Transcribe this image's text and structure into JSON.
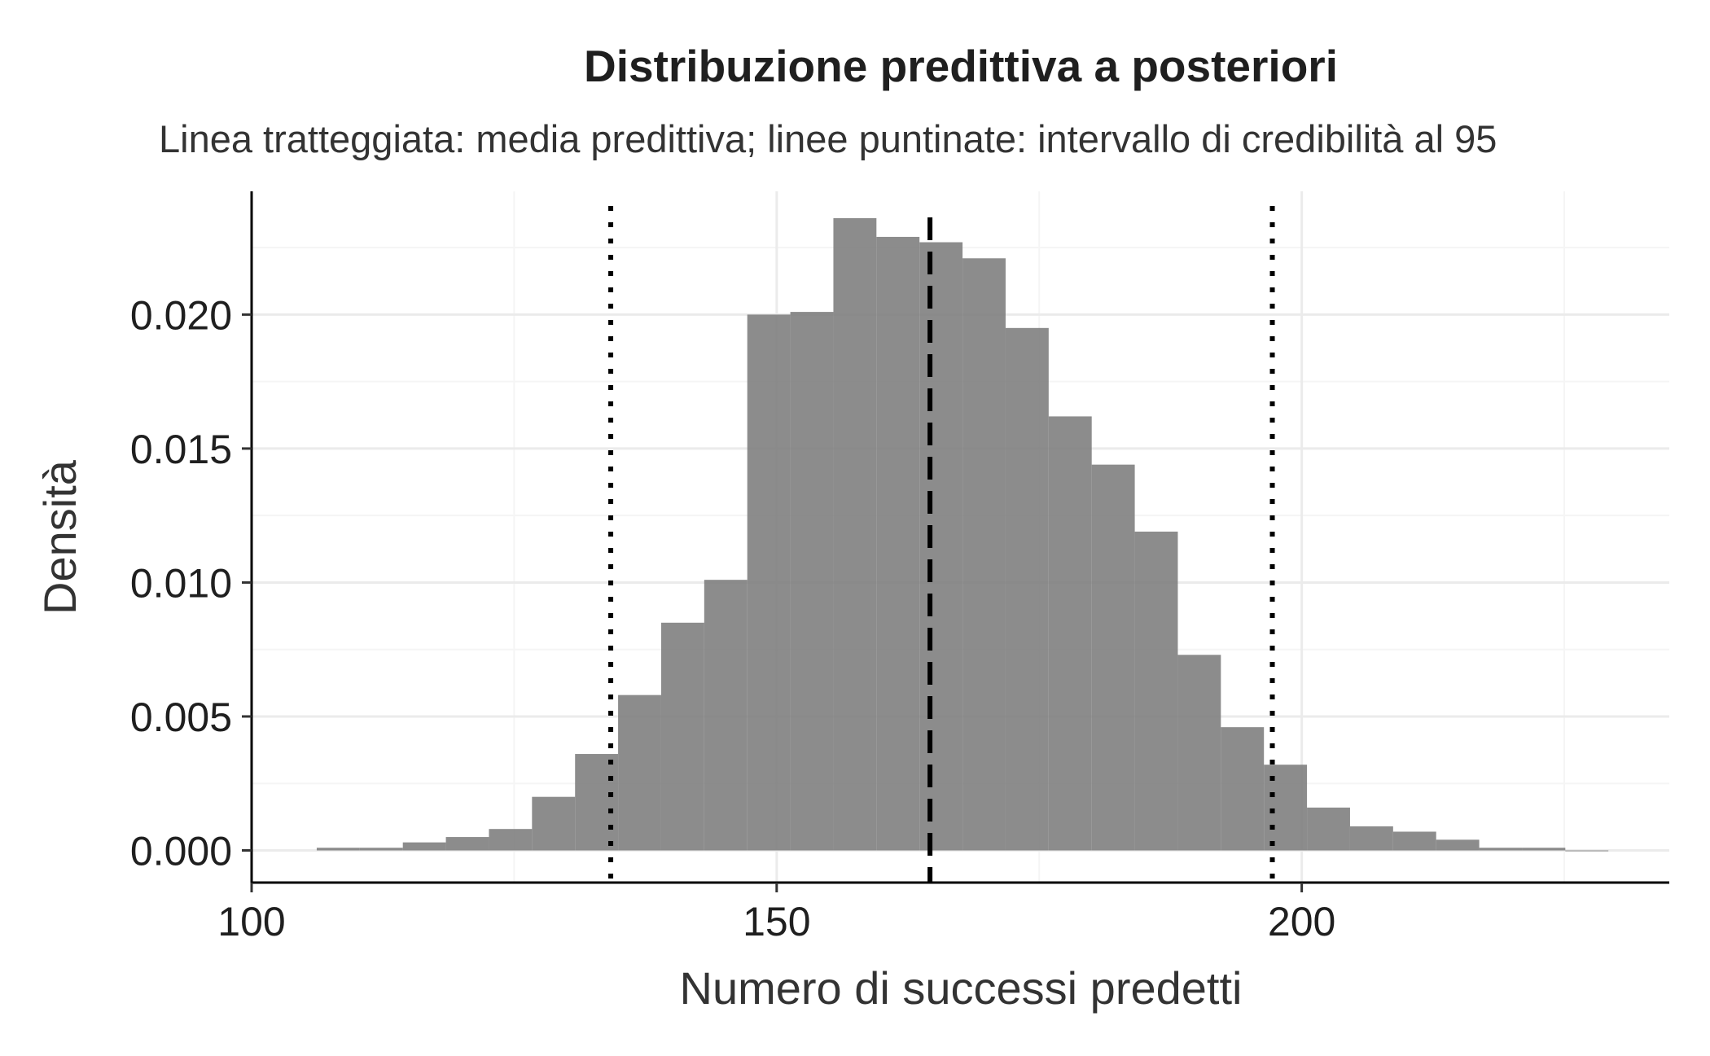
{
  "chart_data": {
    "type": "histogram",
    "title": "Distribuzione predittiva a posteriori",
    "subtitle": "Linea tratteggiata: media predittiva; linee puntinate: intervallo di credibilità al 95",
    "xlabel": "Numero di successi predetti",
    "ylabel": "Densità",
    "xlim": [
      100,
      235
    ],
    "ylim": [
      -0.0012,
      0.0246
    ],
    "x_ticks": [
      100,
      150,
      200
    ],
    "x_tick_labels": [
      "100",
      "150",
      "200"
    ],
    "y_ticks": [
      0.0,
      0.005,
      0.01,
      0.015,
      0.02
    ],
    "y_tick_labels": [
      "0.000",
      "0.005",
      "0.010",
      "0.015",
      "0.020"
    ],
    "bin_width": 4.1,
    "bins": [
      {
        "x0": 106.2,
        "x1": 110.3,
        "density": 0.0001
      },
      {
        "x0": 110.3,
        "x1": 114.4,
        "density": 0.0001
      },
      {
        "x0": 114.4,
        "x1": 118.5,
        "density": 0.0003
      },
      {
        "x0": 118.5,
        "x1": 122.6,
        "density": 0.0005
      },
      {
        "x0": 122.6,
        "x1": 126.7,
        "density": 0.0008
      },
      {
        "x0": 126.7,
        "x1": 130.8,
        "density": 0.002
      },
      {
        "x0": 130.8,
        "x1": 134.9,
        "density": 0.0036
      },
      {
        "x0": 134.9,
        "x1": 139.0,
        "density": 0.0058
      },
      {
        "x0": 139.0,
        "x1": 143.1,
        "density": 0.0085
      },
      {
        "x0": 143.1,
        "x1": 147.2,
        "density": 0.0101
      },
      {
        "x0": 147.2,
        "x1": 151.3,
        "density": 0.02
      },
      {
        "x0": 151.3,
        "x1": 155.4,
        "density": 0.0201
      },
      {
        "x0": 155.4,
        "x1": 159.5,
        "density": 0.0236
      },
      {
        "x0": 159.5,
        "x1": 163.6,
        "density": 0.0229
      },
      {
        "x0": 163.6,
        "x1": 167.7,
        "density": 0.0227
      },
      {
        "x0": 167.7,
        "x1": 171.8,
        "density": 0.0221
      },
      {
        "x0": 171.8,
        "x1": 175.9,
        "density": 0.0195
      },
      {
        "x0": 175.9,
        "x1": 180.0,
        "density": 0.0162
      },
      {
        "x0": 180.0,
        "x1": 184.1,
        "density": 0.0144
      },
      {
        "x0": 184.1,
        "x1": 188.2,
        "density": 0.0119
      },
      {
        "x0": 188.2,
        "x1": 192.3,
        "density": 0.0073
      },
      {
        "x0": 192.3,
        "x1": 196.4,
        "density": 0.0046
      },
      {
        "x0": 196.4,
        "x1": 200.5,
        "density": 0.0032
      },
      {
        "x0": 200.5,
        "x1": 204.6,
        "density": 0.0016
      },
      {
        "x0": 204.6,
        "x1": 208.7,
        "density": 0.0009
      },
      {
        "x0": 208.7,
        "x1": 212.8,
        "density": 0.0007
      },
      {
        "x0": 212.8,
        "x1": 216.9,
        "density": 0.0004
      },
      {
        "x0": 216.9,
        "x1": 221.0,
        "density": 0.0001
      },
      {
        "x0": 221.0,
        "x1": 225.1,
        "density": 0.0001
      },
      {
        "x0": 225.1,
        "x1": 229.2,
        "density": 0.0
      }
    ],
    "mean_line": {
      "x": 164.6,
      "style": "dashed"
    },
    "ci_lines": [
      {
        "x": 134.2,
        "style": "dotted"
      },
      {
        "x": 197.2,
        "style": "dotted"
      }
    ],
    "grid": true,
    "legend": "none",
    "colors": {
      "bar_fill": "#808080",
      "bar_opacity": 0.9,
      "reference_lines": "#000000"
    }
  }
}
